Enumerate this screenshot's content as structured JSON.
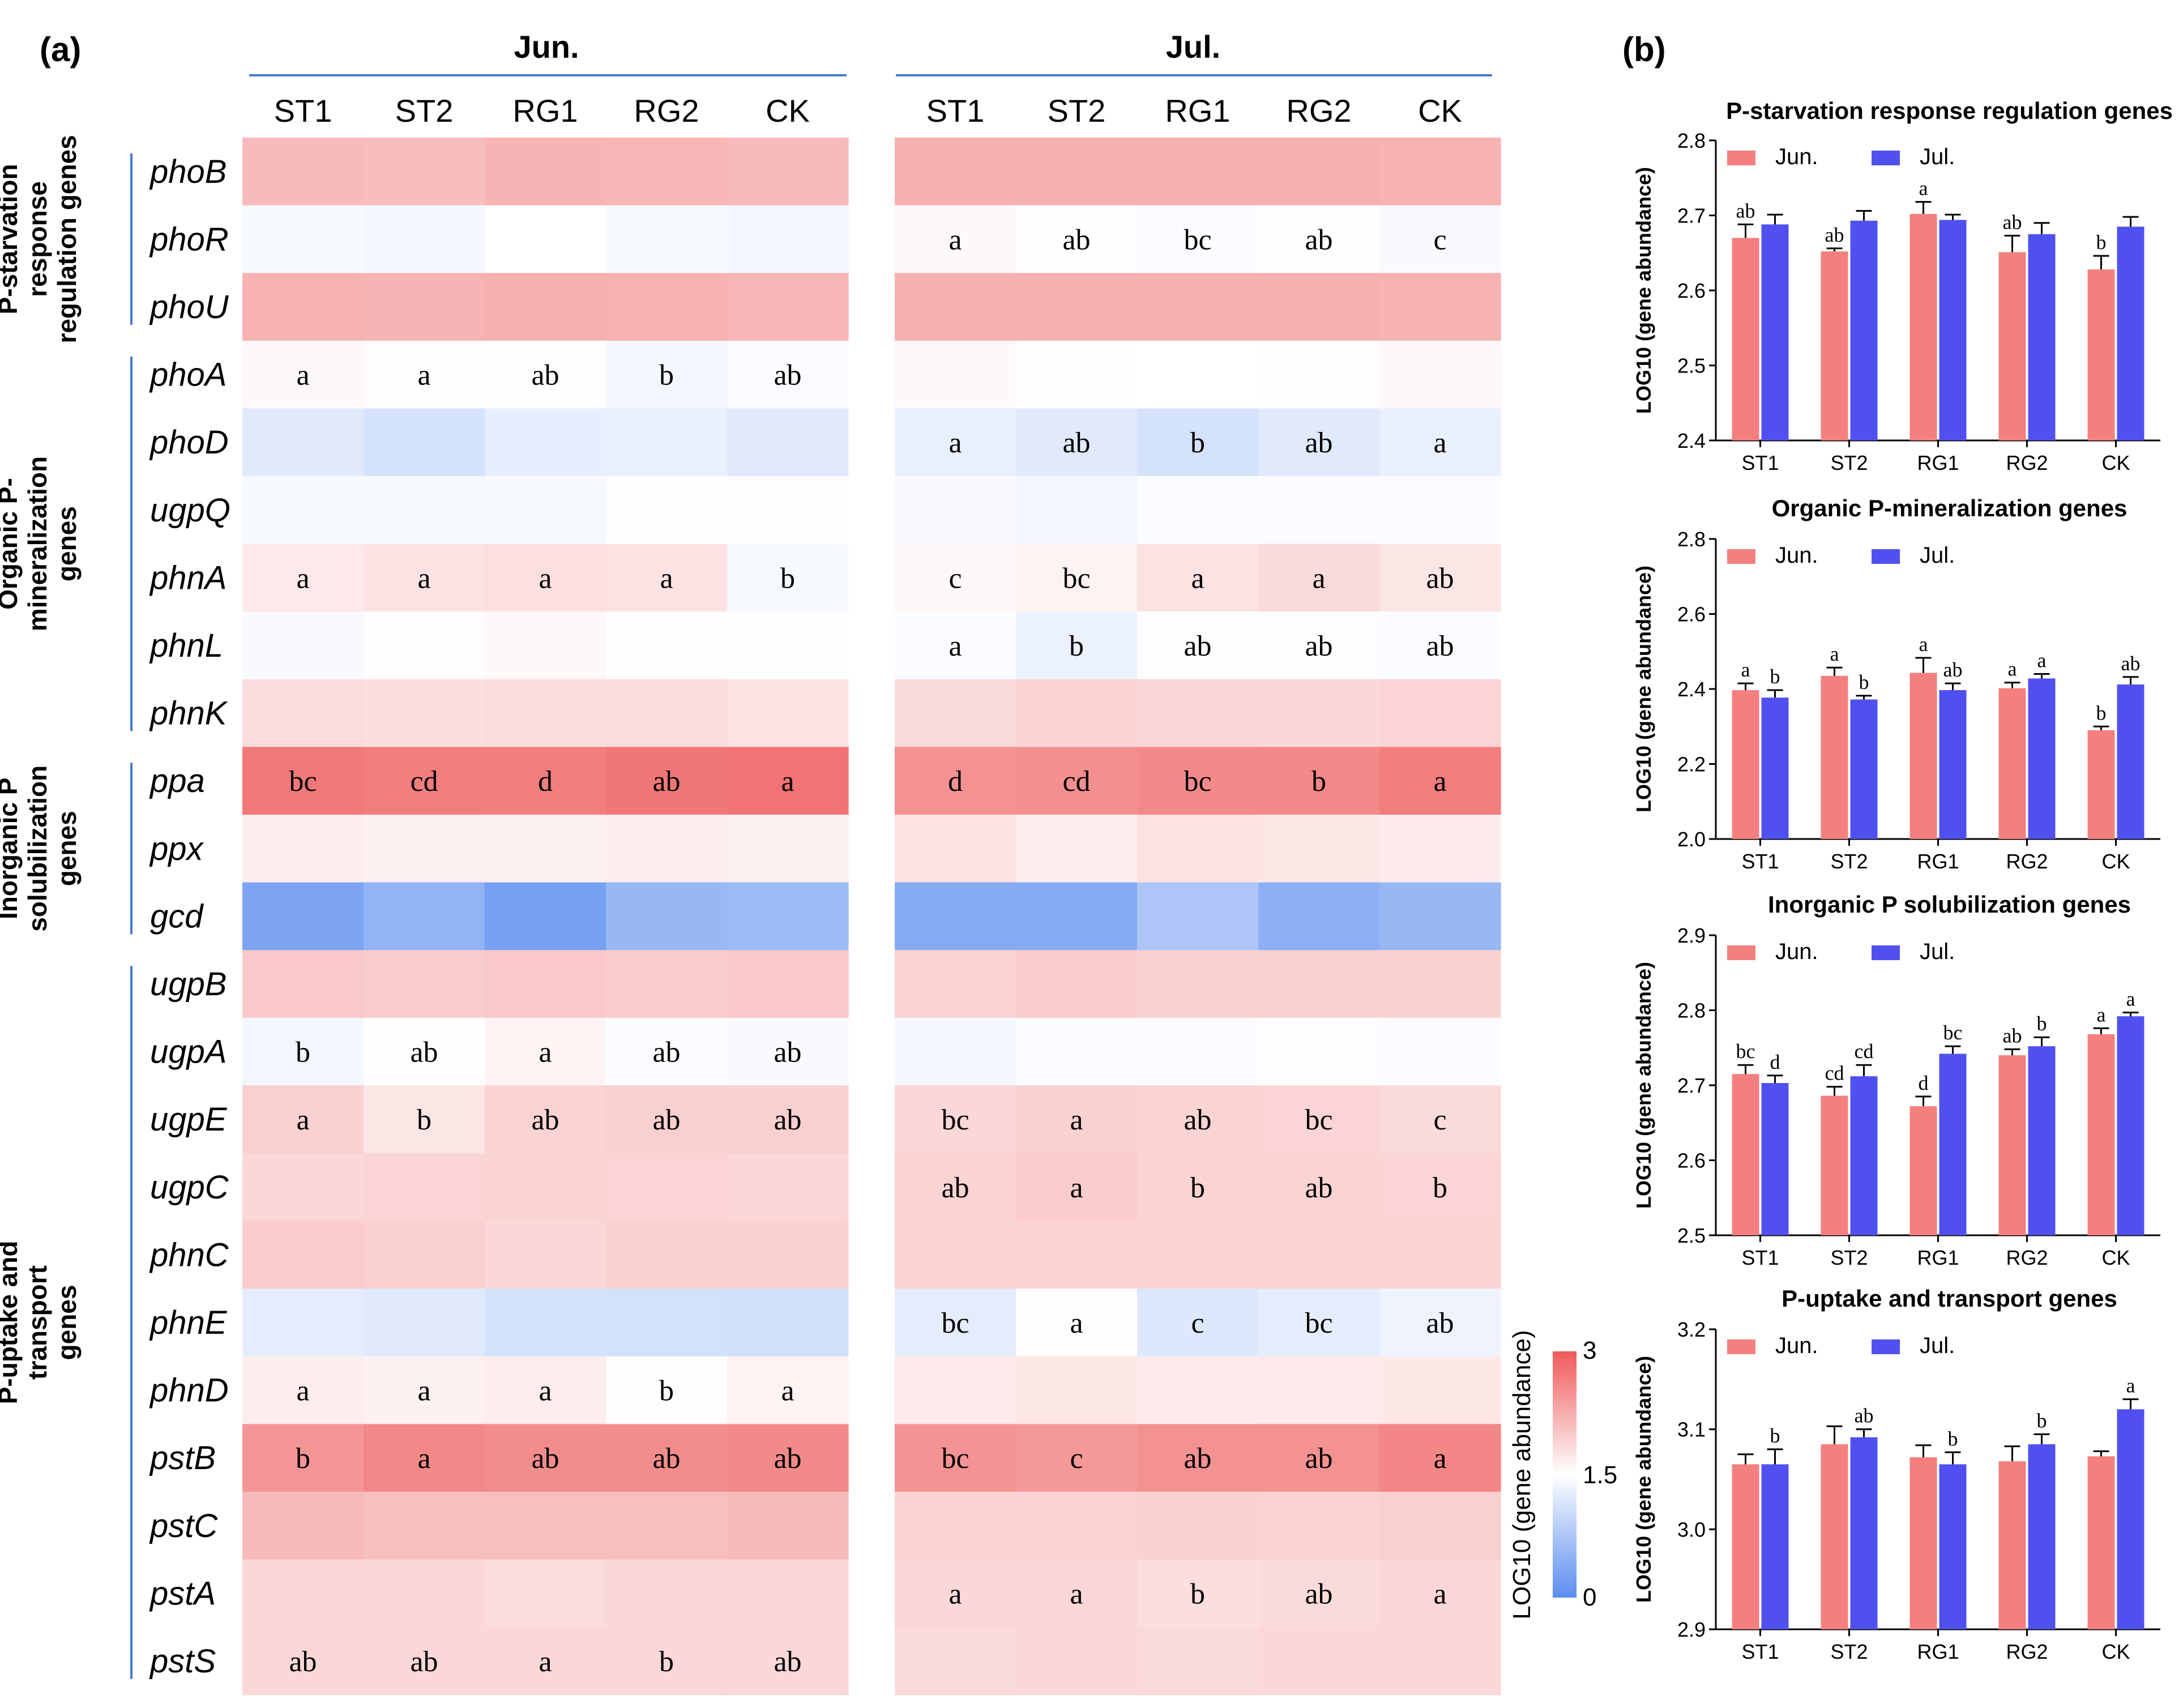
{
  "panel_a": {
    "label": "(a)",
    "months": [
      "Jun.",
      "Jul."
    ],
    "treatments": [
      "ST1",
      "ST2",
      "RG1",
      "RG2",
      "CK"
    ],
    "groups": [
      {
        "lines": [
          "P-starvation",
          "response",
          "regulation genes"
        ],
        "genes": [
          "phoB",
          "phoR",
          "phoU"
        ]
      },
      {
        "lines": [
          "Organic P-",
          "mineralization",
          "genes"
        ],
        "genes": [
          "phoA",
          "phoD",
          "ugpQ",
          "phnA",
          "phnL",
          "phnK"
        ]
      },
      {
        "lines": [
          "Inorganic P",
          "solubilization",
          "genes"
        ],
        "genes": [
          "ppa",
          "ppx",
          "gcd"
        ]
      },
      {
        "lines": [
          "P-uptake and",
          "transport",
          "genes"
        ],
        "genes": [
          "ugpB",
          "ugpA",
          "ugpE",
          "ugpC",
          "phnC",
          "phnE",
          "phnD",
          "pstB",
          "pstC",
          "pstA",
          "pstS"
        ]
      }
    ],
    "colorbar": {
      "label": "LOG10 (gene abundance)",
      "min": 0,
      "mid": 1.5,
      "max": 3,
      "min_label": "0",
      "mid_label": "1.5",
      "max_label": "3",
      "low_color": "#5b8def",
      "mid_color": "#ffffff",
      "high_color": "#ee5a5a"
    }
  },
  "chart_data": [
    {
      "type": "heatmap",
      "title": "Jun.",
      "x": [
        "ST1",
        "ST2",
        "RG1",
        "RG2",
        "CK"
      ],
      "y": [
        "phoB",
        "phoR",
        "phoU",
        "phoA",
        "phoD",
        "ugpQ",
        "phnA",
        "phnL",
        "phnK",
        "ppa",
        "ppx",
        "gcd",
        "ugpB",
        "ugpA",
        "ugpE",
        "ugpC",
        "phnC",
        "phnE",
        "phnD",
        "pstB",
        "pstC",
        "pstA",
        "pstS"
      ],
      "values": [
        [
          2.12,
          2.1,
          2.18,
          2.16,
          2.12
        ],
        [
          1.42,
          1.4,
          1.5,
          1.42,
          1.38
        ],
        [
          2.2,
          2.18,
          2.22,
          2.2,
          2.16
        ],
        [
          1.55,
          1.52,
          1.52,
          1.4,
          1.46
        ],
        [
          1.22,
          1.12,
          1.28,
          1.3,
          1.22
        ],
        [
          1.42,
          1.42,
          1.42,
          1.48,
          1.48
        ],
        [
          1.7,
          1.76,
          1.78,
          1.76,
          1.42
        ],
        [
          1.44,
          1.52,
          1.56,
          1.52,
          1.48
        ],
        [
          1.82,
          1.8,
          1.82,
          1.82,
          1.76
        ],
        [
          2.72,
          2.68,
          2.67,
          2.74,
          2.77
        ],
        [
          1.66,
          1.64,
          1.64,
          1.66,
          1.64
        ],
        [
          0.3,
          0.5,
          0.25,
          0.55,
          0.6
        ],
        [
          2.0,
          1.96,
          2.0,
          1.96,
          2.0
        ],
        [
          1.38,
          1.52,
          1.6,
          1.46,
          1.44
        ],
        [
          1.94,
          1.74,
          1.9,
          1.94,
          1.94
        ],
        [
          1.86,
          1.88,
          1.9,
          1.88,
          1.86
        ],
        [
          1.96,
          1.94,
          1.86,
          1.92,
          1.92
        ],
        [
          1.26,
          1.22,
          1.12,
          1.1,
          1.08
        ],
        [
          1.66,
          1.64,
          1.66,
          1.52,
          1.62
        ],
        [
          2.46,
          2.58,
          2.54,
          2.54,
          2.56
        ],
        [
          2.14,
          2.08,
          2.08,
          2.08,
          2.12
        ],
        [
          1.86,
          1.86,
          1.82,
          1.86,
          1.86
        ],
        [
          1.86,
          1.86,
          1.86,
          1.86,
          1.86
        ]
      ],
      "significance": [
        [
          "",
          "",
          "",
          "",
          ""
        ],
        [
          "",
          "",
          "",
          "",
          ""
        ],
        [
          "",
          "",
          "",
          "",
          ""
        ],
        [
          "a",
          "a",
          "ab",
          "b",
          "ab"
        ],
        [
          "",
          "",
          "",
          "",
          ""
        ],
        [
          "",
          "",
          "",
          "",
          ""
        ],
        [
          "a",
          "a",
          "a",
          "a",
          "b"
        ],
        [
          "",
          "",
          "",
          "",
          ""
        ],
        [
          "",
          "",
          "",
          "",
          ""
        ],
        [
          "bc",
          "cd",
          "d",
          "ab",
          "a"
        ],
        [
          "",
          "",
          "",
          "",
          ""
        ],
        [
          "",
          "",
          "",
          "",
          ""
        ],
        [
          "",
          "",
          "",
          "",
          ""
        ],
        [
          "b",
          "ab",
          "a",
          "ab",
          "ab"
        ],
        [
          "a",
          "b",
          "ab",
          "ab",
          "ab"
        ],
        [
          "",
          "",
          "",
          "",
          ""
        ],
        [
          "",
          "",
          "",
          "",
          ""
        ],
        [
          "",
          "",
          "",
          "",
          ""
        ],
        [
          "a",
          "a",
          "a",
          "b",
          "a"
        ],
        [
          "b",
          "a",
          "ab",
          "ab",
          "ab"
        ],
        [
          "",
          "",
          "",
          "",
          ""
        ],
        [
          "",
          "",
          "",
          "",
          ""
        ],
        [
          "ab",
          "ab",
          "a",
          "b",
          "ab"
        ]
      ]
    },
    {
      "type": "heatmap",
      "title": "Jul.",
      "x": [
        "ST1",
        "ST2",
        "RG1",
        "RG2",
        "CK"
      ],
      "y": [
        "phoB",
        "phoR",
        "phoU",
        "phoA",
        "phoD",
        "ugpQ",
        "phnA",
        "phnL",
        "phnK",
        "ppa",
        "ppx",
        "gcd",
        "ugpB",
        "ugpA",
        "ugpE",
        "ugpC",
        "phnC",
        "phnE",
        "phnD",
        "pstB",
        "pstC",
        "pstA",
        "pstS"
      ],
      "values": [
        [
          2.22,
          2.22,
          2.22,
          2.22,
          2.2
        ],
        [
          1.56,
          1.52,
          1.46,
          1.52,
          1.44
        ],
        [
          2.22,
          2.22,
          2.22,
          2.22,
          2.2
        ],
        [
          1.55,
          1.52,
          1.5,
          1.52,
          1.56
        ],
        [
          1.3,
          1.22,
          1.12,
          1.22,
          1.3
        ],
        [
          1.44,
          1.38,
          1.46,
          1.46,
          1.46
        ],
        [
          1.56,
          1.62,
          1.76,
          1.84,
          1.74
        ],
        [
          1.46,
          1.32,
          1.48,
          1.48,
          1.46
        ],
        [
          1.84,
          1.9,
          1.86,
          1.86,
          1.88
        ],
        [
          2.5,
          2.52,
          2.56,
          2.58,
          2.68
        ],
        [
          1.76,
          1.66,
          1.76,
          1.74,
          1.68
        ],
        [
          0.4,
          0.4,
          0.75,
          0.45,
          0.55
        ],
        [
          1.9,
          1.96,
          1.92,
          1.94,
          1.92
        ],
        [
          1.4,
          1.46,
          1.46,
          1.48,
          1.46
        ],
        [
          1.86,
          1.92,
          1.9,
          1.88,
          1.84
        ],
        [
          1.9,
          1.96,
          1.9,
          1.9,
          1.88
        ],
        [
          1.9,
          1.9,
          1.9,
          1.9,
          1.9
        ],
        [
          1.26,
          1.48,
          1.2,
          1.26,
          1.34
        ],
        [
          1.7,
          1.72,
          1.68,
          1.7,
          1.72
        ],
        [
          2.48,
          2.44,
          2.5,
          2.5,
          2.6
        ],
        [
          1.9,
          1.9,
          1.92,
          1.9,
          1.94
        ],
        [
          1.86,
          1.86,
          1.8,
          1.84,
          1.86
        ],
        [
          1.84,
          1.86,
          1.84,
          1.86,
          1.86
        ]
      ],
      "significance": [
        [
          "",
          "",
          "",
          "",
          ""
        ],
        [
          "a",
          "ab",
          "bc",
          "ab",
          "c"
        ],
        [
          "",
          "",
          "",
          "",
          ""
        ],
        [
          "",
          "",
          "",
          "",
          ""
        ],
        [
          "a",
          "ab",
          "b",
          "ab",
          "a"
        ],
        [
          "",
          "",
          "",
          "",
          ""
        ],
        [
          "c",
          "bc",
          "a",
          "a",
          "ab"
        ],
        [
          "a",
          "b",
          "ab",
          "ab",
          "ab"
        ],
        [
          "",
          "",
          "",
          "",
          ""
        ],
        [
          "d",
          "cd",
          "bc",
          "b",
          "a"
        ],
        [
          "",
          "",
          "",
          "",
          ""
        ],
        [
          "",
          "",
          "",
          "",
          ""
        ],
        [
          "",
          "",
          "",
          "",
          ""
        ],
        [
          "",
          "",
          "",
          "",
          ""
        ],
        [
          "bc",
          "a",
          "ab",
          "bc",
          "c"
        ],
        [
          "ab",
          "a",
          "b",
          "ab",
          "b"
        ],
        [
          "",
          "",
          "",
          "",
          ""
        ],
        [
          "bc",
          "a",
          "c",
          "bc",
          "ab"
        ],
        [
          "",
          "",
          "",
          "",
          ""
        ],
        [
          "bc",
          "c",
          "ab",
          "ab",
          "a"
        ],
        [
          "",
          "",
          "",
          "",
          ""
        ],
        [
          "a",
          "a",
          "b",
          "ab",
          "a"
        ],
        [
          "",
          "",
          "",
          "",
          ""
        ]
      ]
    },
    {
      "type": "bar",
      "title": "P-starvation response regulation genes",
      "ylabel": "LOG10 (gene abundance)",
      "categories": [
        "ST1",
        "ST2",
        "RG1",
        "RG2",
        "CK"
      ],
      "ylim": [
        2.4,
        2.8
      ],
      "yticks": [
        "2.4",
        "2.5",
        "2.6",
        "2.7",
        "2.8"
      ],
      "series": [
        {
          "name": "Jun.",
          "color": "#f47f7f",
          "values": [
            2.67,
            2.652,
            2.702,
            2.651,
            2.628
          ],
          "errors": [
            0.018,
            0.004,
            0.016,
            0.022,
            0.018
          ],
          "letters": [
            "ab",
            "ab",
            "a",
            "ab",
            "b"
          ]
        },
        {
          "name": "Jul.",
          "color": "#5050f0",
          "values": [
            2.688,
            2.693,
            2.694,
            2.675,
            2.685
          ],
          "errors": [
            0.013,
            0.013,
            0.007,
            0.015,
            0.013
          ],
          "letters": [
            "",
            "",
            "",
            "",
            ""
          ]
        }
      ]
    },
    {
      "type": "bar",
      "title": "Organic P-mineralization genes",
      "ylabel": "LOG10 (gene abundance)",
      "categories": [
        "ST1",
        "ST2",
        "RG1",
        "RG2",
        "CK"
      ],
      "ylim": [
        2.0,
        2.8
      ],
      "yticks": [
        "2.0",
        "2.2",
        "2.4",
        "2.6",
        "2.8"
      ],
      "series": [
        {
          "name": "Jun.",
          "color": "#f47f7f",
          "values": [
            2.397,
            2.435,
            2.443,
            2.402,
            2.29
          ],
          "errors": [
            0.018,
            0.022,
            0.04,
            0.015,
            0.01
          ],
          "letters": [
            "a",
            "a",
            "a",
            "a",
            "b"
          ]
        },
        {
          "name": "Jul.",
          "color": "#5050f0",
          "values": [
            2.377,
            2.372,
            2.397,
            2.428,
            2.412
          ],
          "errors": [
            0.02,
            0.01,
            0.018,
            0.012,
            0.02
          ],
          "letters": [
            "b",
            "b",
            "ab",
            "a",
            "ab"
          ]
        }
      ]
    },
    {
      "type": "bar",
      "title": "Inorganic P solubilization genes",
      "ylabel": "LOG10 (gene abundance)",
      "categories": [
        "ST1",
        "ST2",
        "RG1",
        "RG2",
        "CK"
      ],
      "ylim": [
        2.5,
        2.9
      ],
      "yticks": [
        "2.5",
        "2.6",
        "2.7",
        "2.8",
        "2.9"
      ],
      "series": [
        {
          "name": "Jun.",
          "color": "#f47f7f",
          "values": [
            2.715,
            2.686,
            2.672,
            2.74,
            2.768
          ],
          "errors": [
            0.012,
            0.012,
            0.013,
            0.008,
            0.008
          ],
          "letters": [
            "bc",
            "cd",
            "d",
            "ab",
            "a"
          ]
        },
        {
          "name": "Jul.",
          "color": "#5050f0",
          "values": [
            2.703,
            2.712,
            2.742,
            2.752,
            2.792
          ],
          "errors": [
            0.01,
            0.015,
            0.01,
            0.012,
            0.005
          ],
          "letters": [
            "d",
            "cd",
            "bc",
            "b",
            "a"
          ]
        }
      ]
    },
    {
      "type": "bar",
      "title": "P-uptake and transport genes",
      "ylabel": "LOG10 (gene abundance)",
      "categories": [
        "ST1",
        "ST2",
        "RG1",
        "RG2",
        "CK"
      ],
      "ylim": [
        2.9,
        3.2
      ],
      "yticks": [
        "2.9",
        "3.0",
        "3.1",
        "3.2"
      ],
      "series": [
        {
          "name": "Jun.",
          "color": "#f47f7f",
          "values": [
            3.065,
            3.085,
            3.072,
            3.068,
            3.073
          ],
          "errors": [
            0.01,
            0.018,
            0.012,
            0.015,
            0.005
          ],
          "letters": [
            "",
            "",
            "",
            "",
            ""
          ]
        },
        {
          "name": "Jul.",
          "color": "#5050f0",
          "values": [
            3.065,
            3.092,
            3.065,
            3.085,
            3.12
          ],
          "errors": [
            0.015,
            0.008,
            0.012,
            0.01,
            0.01
          ],
          "letters": [
            "b",
            "ab",
            "b",
            "b",
            "a"
          ]
        }
      ]
    }
  ],
  "panel_b": {
    "label": "(b)"
  }
}
